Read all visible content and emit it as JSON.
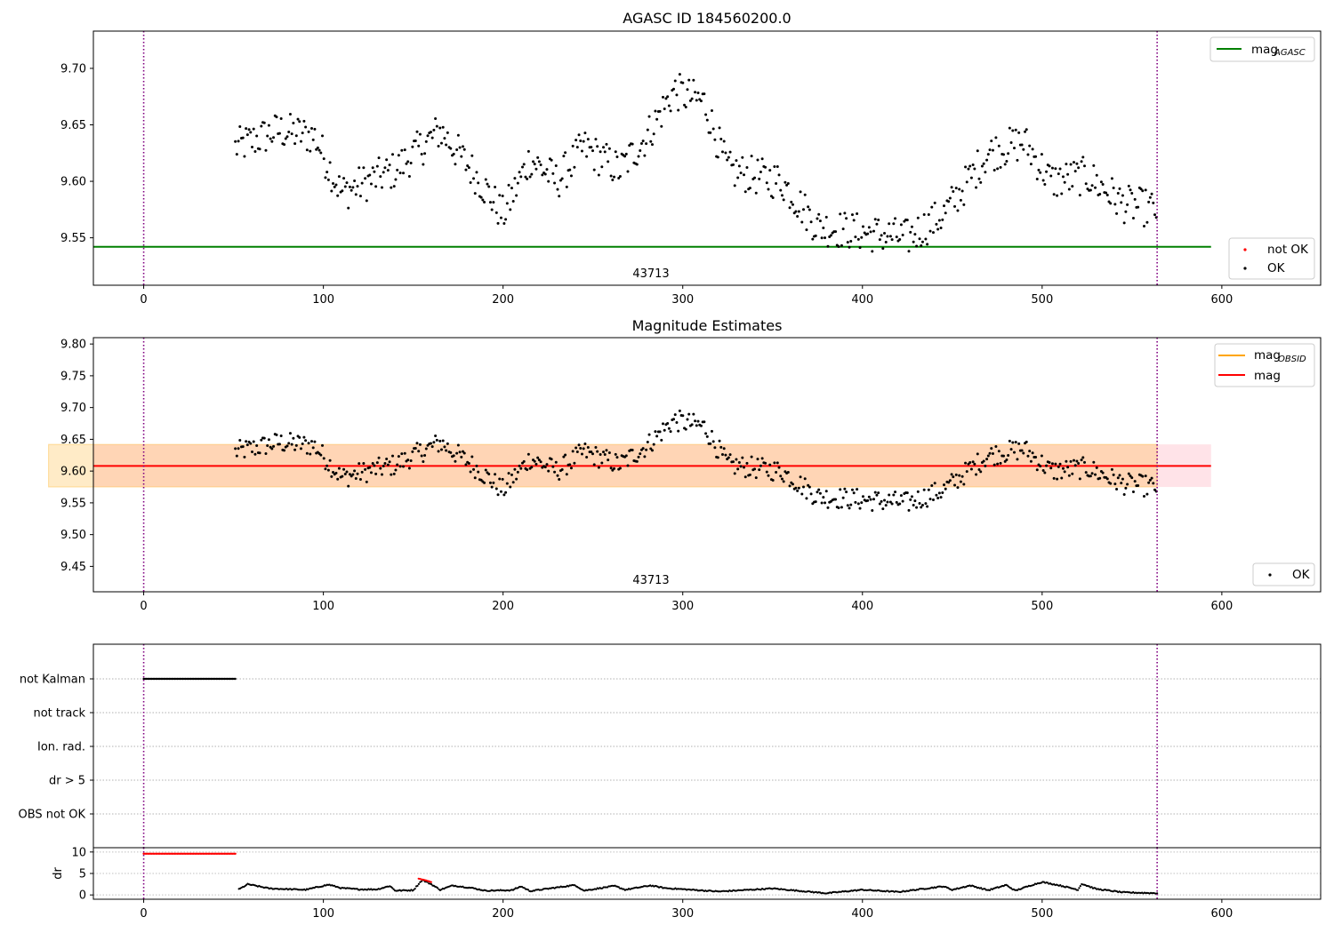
{
  "chart_data": [
    {
      "type": "scatter",
      "title": "AGASC ID 184560200.0",
      "xlim": [
        -28,
        655
      ],
      "ylim": [
        9.508,
        9.733
      ],
      "xticks": [
        "0",
        "100",
        "200",
        "300",
        "400",
        "500",
        "600"
      ],
      "yticks": [
        "9.55",
        "9.60",
        "9.65",
        "9.70"
      ],
      "mag_agasc": 9.542,
      "mag_agasc_range": [
        0,
        594
      ],
      "obs_lines": [
        0,
        564
      ],
      "obsid_annotation": {
        "text": "43713",
        "x": 282,
        "y": 9.515
      },
      "legend_top": [
        {
          "label": "mag",
          "sub": "AGASC",
          "color": "#008000"
        }
      ],
      "legend_bottom": [
        {
          "label": "not OK",
          "color": "#ff0000"
        },
        {
          "label": "OK",
          "color": "#000000"
        }
      ],
      "series": [
        {
          "name": "OK",
          "x_range": [
            51,
            564
          ],
          "color": "#000000",
          "trend": [
            [
              51,
              9.63
            ],
            [
              75,
              9.645
            ],
            [
              95,
              9.64
            ],
            [
              110,
              9.59
            ],
            [
              125,
              9.6
            ],
            [
              140,
              9.61
            ],
            [
              165,
              9.645
            ],
            [
              185,
              9.605
            ],
            [
              200,
              9.57
            ],
            [
              215,
              9.62
            ],
            [
              230,
              9.6
            ],
            [
              245,
              9.63
            ],
            [
              265,
              9.61
            ],
            [
              280,
              9.64
            ],
            [
              295,
              9.68
            ],
            [
              312,
              9.67
            ],
            [
              325,
              9.61
            ],
            [
              355,
              9.6
            ],
            [
              375,
              9.56
            ],
            [
              400,
              9.555
            ],
            [
              425,
              9.55
            ],
            [
              445,
              9.57
            ],
            [
              470,
              9.625
            ],
            [
              490,
              9.635
            ],
            [
              505,
              9.6
            ],
            [
              525,
              9.605
            ],
            [
              545,
              9.58
            ],
            [
              564,
              9.575
            ]
          ]
        },
        {
          "name": "not OK",
          "values": [],
          "color": "#ff0000"
        }
      ]
    },
    {
      "type": "scatter",
      "title": "Magnitude Estimates",
      "xlim": [
        -28,
        655
      ],
      "ylim": [
        9.41,
        9.81
      ],
      "xticks": [
        "0",
        "100",
        "200",
        "300",
        "400",
        "500",
        "600"
      ],
      "yticks": [
        "9.45",
        "9.50",
        "9.55",
        "9.60",
        "9.65",
        "9.70",
        "9.75",
        "9.80"
      ],
      "mag": 9.608,
      "mag_band": [
        9.575,
        9.642
      ],
      "mag_obsid": 9.608,
      "mag_obsid_band": [
        9.575,
        9.642
      ],
      "band_range": [
        0,
        594
      ],
      "obs_range": [
        51,
        564
      ],
      "obs_lines": [
        0,
        564
      ],
      "obsid_annotation": {
        "text": "43713",
        "x": 282,
        "y": 9.423
      },
      "legend_top": [
        {
          "label": "mag",
          "sub": "OBSID",
          "color": "#ffa500"
        },
        {
          "label": "mag",
          "sub": "",
          "color": "#ff0000"
        }
      ],
      "legend_bottom": [
        {
          "label": "OK",
          "color": "#000000"
        }
      ]
    },
    {
      "type": "scatter",
      "title": "",
      "xlim": [
        -28,
        655
      ],
      "categories": [
        "not Kalman",
        "not track",
        "Ion. rad.",
        "dr > 5",
        "OBS not OK"
      ],
      "flags": [
        {
          "category": "not Kalman",
          "x_range": [
            0,
            51
          ],
          "color": "#000000"
        }
      ],
      "obs_lines": [
        0,
        564
      ]
    },
    {
      "type": "scatter",
      "title": "",
      "xlim": [
        -28,
        655
      ],
      "ylim": [
        -1,
        11
      ],
      "xticks": [
        "0",
        "100",
        "200",
        "300",
        "400",
        "500",
        "600"
      ],
      "yticks": [
        "0",
        "5",
        "10"
      ],
      "ylabel": "dr",
      "obs_lines": [
        0,
        564
      ],
      "series": [
        {
          "name": "dr > 5",
          "x_range": [
            0,
            51
          ],
          "value": 9.6,
          "color": "#ff0000"
        },
        {
          "name": "dr",
          "x_range": [
            53,
            564
          ],
          "color": "#000000",
          "trend": [
            [
              53,
              1.3
            ],
            [
              58,
              2.5
            ],
            [
              70,
              1.5
            ],
            [
              90,
              1.2
            ],
            [
              103,
              2.4
            ],
            [
              110,
              1.6
            ],
            [
              120,
              1.3
            ],
            [
              130,
              1.3
            ],
            [
              137,
              2.1
            ],
            [
              140,
              1.0
            ],
            [
              150,
              1.1
            ],
            [
              155,
              3.5
            ],
            [
              160,
              2.5
            ],
            [
              165,
              1.2
            ],
            [
              172,
              2.2
            ],
            [
              183,
              1.6
            ],
            [
              190,
              1.0
            ],
            [
              205,
              1.1
            ],
            [
              210,
              2.0
            ],
            [
              215,
              0.9
            ],
            [
              240,
              2.3
            ],
            [
              245,
              1.0
            ],
            [
              262,
              2.1
            ],
            [
              268,
              1.2
            ],
            [
              282,
              2.2
            ],
            [
              290,
              1.6
            ],
            [
              320,
              0.8
            ],
            [
              350,
              1.5
            ],
            [
              380,
              0.4
            ],
            [
              400,
              1.2
            ],
            [
              420,
              0.7
            ],
            [
              445,
              2.0
            ],
            [
              450,
              1.2
            ],
            [
              460,
              2.2
            ],
            [
              470,
              1.1
            ],
            [
              480,
              2.3
            ],
            [
              485,
              1.0
            ],
            [
              495,
              2.4
            ],
            [
              500,
              3.0
            ],
            [
              510,
              2.2
            ],
            [
              520,
              1.2
            ],
            [
              522,
              2.6
            ],
            [
              530,
              1.4
            ],
            [
              545,
              0.6
            ],
            [
              564,
              0.4
            ]
          ]
        },
        {
          "name": "dr > 5 (late)",
          "x_range": [
            153,
            160
          ],
          "color": "#ff0000",
          "trend": [
            [
              153,
              3.8
            ],
            [
              157,
              3.4
            ],
            [
              160,
              3.0
            ]
          ]
        }
      ]
    }
  ]
}
